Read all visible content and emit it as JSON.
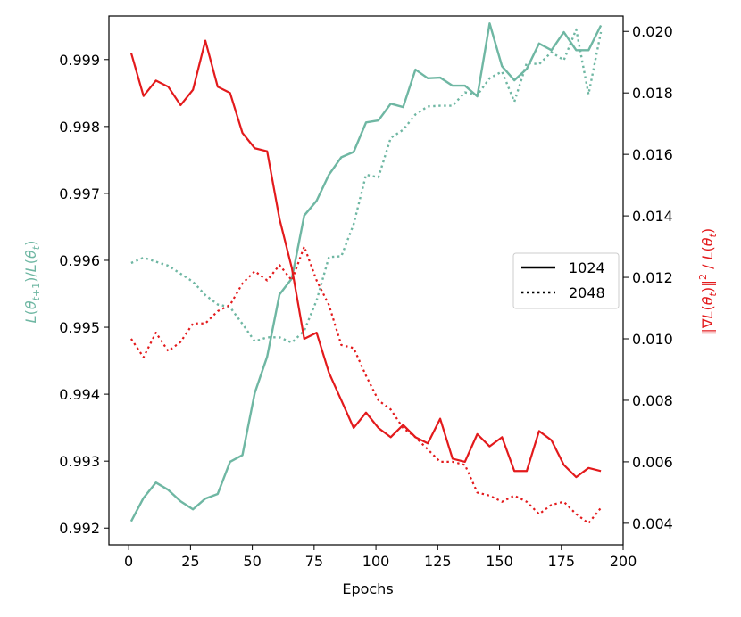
{
  "chart_data": {
    "type": "line",
    "title": "",
    "xlabel": "Epochs",
    "ylabel_left": "L(θ_{t+1})/L(θ_t)",
    "ylabel_right": "‖∇L(θ_t)‖² / L(θ_t)",
    "xlim": [
      -8,
      200
    ],
    "ylim_left": [
      0.99175,
      0.99965
    ],
    "ylim_right": [
      0.0033,
      0.0205
    ],
    "x_ticks": [
      0,
      25,
      50,
      75,
      100,
      125,
      150,
      175,
      200
    ],
    "y_ticks_left": [
      0.992,
      0.993,
      0.994,
      0.995,
      0.996,
      0.997,
      0.998,
      0.999
    ],
    "y_ticks_right": [
      0.004,
      0.006,
      0.008,
      0.01,
      0.012,
      0.014,
      0.016,
      0.018,
      0.02
    ],
    "legend": {
      "position": "center-right",
      "entries": [
        {
          "label": "1024",
          "style": "solid"
        },
        {
          "label": "2048",
          "style": "dotted"
        }
      ]
    },
    "colors": {
      "ratio": "#6fb7a3",
      "grad": "#e31a1c"
    },
    "x": [
      1,
      6,
      11,
      16,
      21,
      26,
      31,
      36,
      41,
      46,
      51,
      56,
      61,
      66,
      71,
      76,
      81,
      86,
      91,
      96,
      101,
      106,
      111,
      116,
      121,
      126,
      131,
      136,
      141,
      146,
      151,
      156,
      161,
      166,
      171,
      176,
      181,
      186,
      191
    ],
    "series": [
      {
        "name": "1024",
        "axis": "left",
        "style": "solid",
        "color": "#6fb7a3",
        "values": [
          0.9921,
          0.99245,
          0.99268,
          0.99257,
          0.9924,
          0.99228,
          0.99244,
          0.99251,
          0.99299,
          0.99309,
          0.99402,
          0.99456,
          0.99549,
          0.99573,
          0.99667,
          0.99689,
          0.99728,
          0.99754,
          0.99762,
          0.99806,
          0.99809,
          0.99834,
          0.99829,
          0.99885,
          0.99872,
          0.99873,
          0.99861,
          0.99861,
          0.99845,
          0.99954,
          0.9989,
          0.99869,
          0.99886,
          0.99924,
          0.99914,
          0.99941,
          0.99914,
          0.99914,
          0.99951
        ]
      },
      {
        "name": "2048",
        "axis": "left",
        "style": "dotted",
        "color": "#6fb7a3",
        "values": [
          0.99596,
          0.99604,
          0.99598,
          0.99592,
          0.9958,
          0.99568,
          0.99548,
          0.99534,
          0.9953,
          0.99505,
          0.99479,
          0.99485,
          0.99485,
          0.99477,
          0.99495,
          0.9954,
          0.99605,
          0.99606,
          0.99654,
          0.99728,
          0.99724,
          0.99783,
          0.99795,
          0.99818,
          0.9983,
          0.99831,
          0.99831,
          0.99851,
          0.99847,
          0.99872,
          0.99882,
          0.99837,
          0.99895,
          0.99893,
          0.99911,
          0.99899,
          0.99945,
          0.99848,
          0.99941
        ]
      },
      {
        "name": "1024",
        "axis": "right",
        "style": "solid",
        "color": "#e31a1c",
        "values": [
          0.0193,
          0.0179,
          0.0184,
          0.0182,
          0.0176,
          0.0181,
          0.0197,
          0.0182,
          0.018,
          0.0167,
          0.0162,
          0.0161,
          0.0139,
          0.0123,
          0.01,
          0.0102,
          0.0089,
          0.008,
          0.0071,
          0.0076,
          0.0071,
          0.0068,
          0.0072,
          0.0068,
          0.0066,
          0.0074,
          0.0061,
          0.006,
          0.0069,
          0.0065,
          0.0068,
          0.0057,
          0.0057,
          0.007,
          0.0067,
          0.0059,
          0.0055,
          0.0058,
          0.0057
        ]
      },
      {
        "name": "2048",
        "axis": "right",
        "style": "dotted",
        "color": "#e31a1c",
        "values": [
          0.01,
          0.0094,
          0.0102,
          0.0096,
          0.0099,
          0.0105,
          0.0105,
          0.0109,
          0.0111,
          0.0118,
          0.0122,
          0.0119,
          0.0124,
          0.0119,
          0.013,
          0.0119,
          0.0111,
          0.0098,
          0.0097,
          0.0088,
          0.008,
          0.0077,
          0.0071,
          0.0068,
          0.0064,
          0.006,
          0.006,
          0.0059,
          0.005,
          0.0049,
          0.0047,
          0.0049,
          0.0047,
          0.0043,
          0.0046,
          0.0047,
          0.0043,
          0.004,
          0.0045
        ]
      }
    ]
  }
}
